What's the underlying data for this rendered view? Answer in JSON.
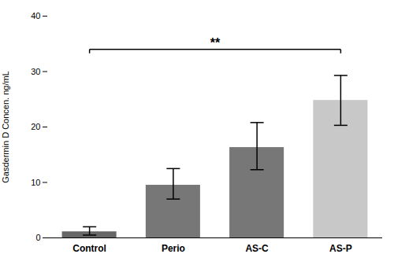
{
  "chart_data": {
    "type": "bar",
    "categories": [
      "Control",
      "Perio",
      "AS-C",
      "AS-P"
    ],
    "values": [
      1.1,
      9.5,
      16.3,
      24.8
    ],
    "errors_upper": [
      0.9,
      3.0,
      4.5,
      4.5
    ],
    "errors_lower": [
      0.6,
      2.5,
      4.0,
      4.5
    ],
    "colors": [
      "#666666",
      "#777777",
      "#777777",
      "#c8c8c8"
    ],
    "ylabel": "Gasdermin D Concen. ng/mL",
    "ylim": [
      0,
      40
    ],
    "yticks": [
      0,
      10,
      20,
      30,
      40
    ],
    "grid": false,
    "annotations": [
      {
        "text": "**",
        "x1": "Control",
        "x2": "AS-P",
        "y": 34.0
      }
    ]
  }
}
